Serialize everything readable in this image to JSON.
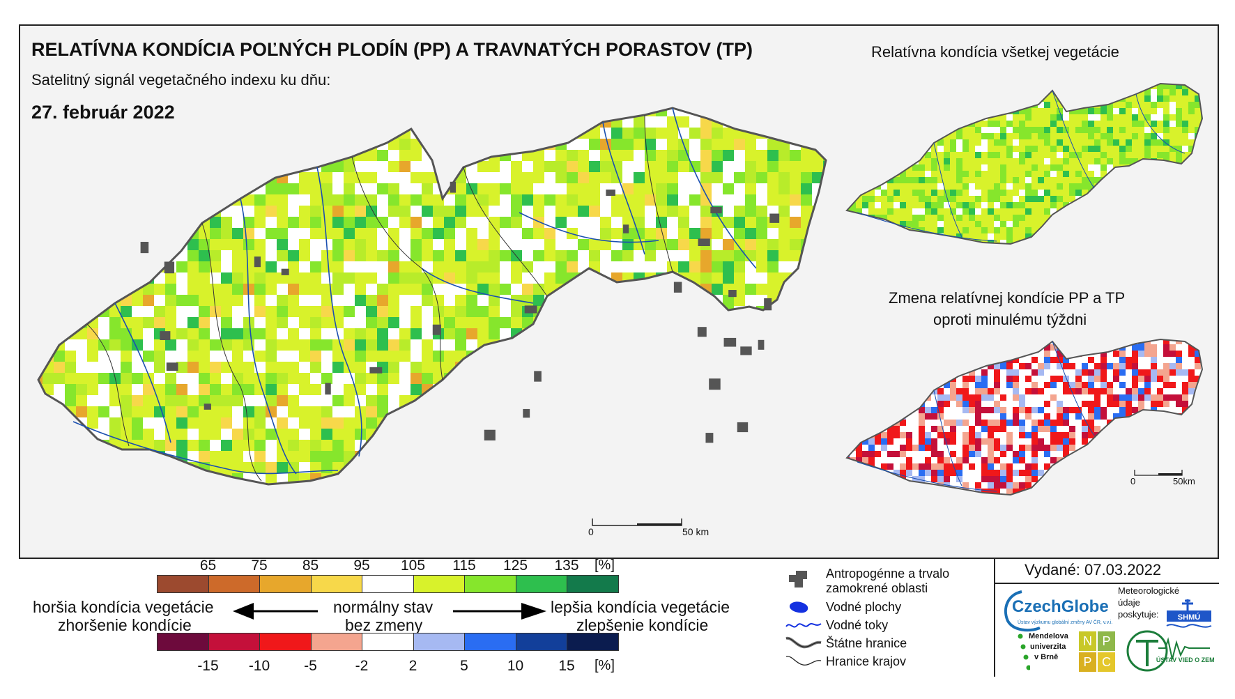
{
  "header": {
    "title": "RELATÍVNA KONDÍCIA POĽNÝCH PLODÍN (PP) A TRAVNATÝCH PORASTOV (TP)",
    "subtitle": "Satelitný signál vegetačného indexu ku dňu:",
    "date": "27. február 2022"
  },
  "inset_top": {
    "title": "Relatívna kondícia všetkej vegetácie"
  },
  "inset_bottom": {
    "title_line1": "Zmena relatívnej kondície PP a TP",
    "title_line2": "oproti minulému týždni"
  },
  "scale_main": {
    "zero": "0",
    "end": "50 km"
  },
  "scale_inset": {
    "zero": "0",
    "end": "50km"
  },
  "legend": {
    "top_ticks": [
      "65",
      "75",
      "85",
      "95",
      "105",
      "115",
      "125",
      "135"
    ],
    "top_unit": "[%]",
    "top_colors": [
      "#9c4a2f",
      "#cd6a2a",
      "#e7a72c",
      "#f7d84a",
      "#ffffff",
      "#d8f22b",
      "#86e62c",
      "#2ebf4e",
      "#137a4b"
    ],
    "bottom_ticks": [
      "-15",
      "-10",
      "-5",
      "-2",
      "2",
      "5",
      "10",
      "15"
    ],
    "bottom_unit": "[%]",
    "bottom_colors": [
      "#6d0a3c",
      "#c4103a",
      "#f0181a",
      "#f4a58f",
      "#ffffff",
      "#a6b9f2",
      "#2a6df2",
      "#123f9a",
      "#0b1c4f"
    ],
    "left_line1": "horšia kondícia vegetácie",
    "left_line2": "zhoršenie kondície",
    "center_line1": "normálny stav",
    "center_line2": "bez zmeny",
    "right_line1": "lepšia kondícia vegetácie",
    "right_line2": "zlepšenie kondície"
  },
  "map_key": {
    "anthropogenic_line1": "Antropogénne a trvalo",
    "anthropogenic_line2": "zamokrené oblasti",
    "water_areas": "Vodné plochy",
    "water_streams": "Vodné toky",
    "state_borders": "Štátne hranice",
    "region_borders": "Hranice krajov"
  },
  "issued": "Vydané: 07.03.2022",
  "logos": {
    "czechglobe": "CzechGlobe",
    "czechglobe_sub": "Ústav výzkumu globální změny AV ČR, v.v.i.",
    "meteo_line1": "Meteorologické",
    "meteo_line2": "údaje",
    "meteo_line3": "poskytuje:",
    "shmu": "SHMÚ",
    "mendel_line1": "Mendelova",
    "mendel_line2": "univerzita",
    "mendel_line3": "v Brně",
    "nppc": [
      "N",
      "P",
      "P",
      "C"
    ],
    "uvoz": "ÚSTAV VIED O ZEMI"
  }
}
